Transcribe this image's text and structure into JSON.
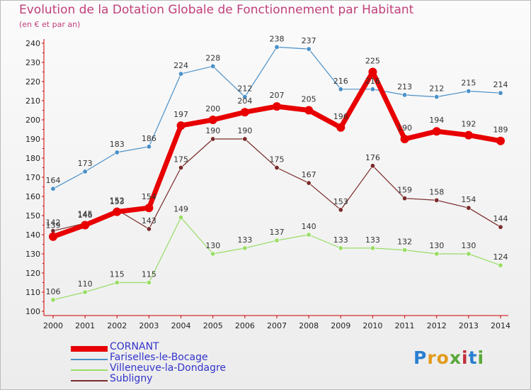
{
  "title": "Evolution de la Dotation Globale de Fonctionnement par Habitant",
  "subtitle": "(en € et par an)",
  "logo": {
    "text": "Proxiti",
    "letters": [
      "P",
      "r",
      "o",
      "x",
      "i",
      "t",
      "i"
    ],
    "colors": [
      "#2a7fd0",
      "#e39a1c",
      "#e39a1c",
      "#59a83a",
      "#c0303c",
      "#2a7fd0",
      "#59a83a"
    ]
  },
  "chart_data": {
    "type": "line",
    "title": "Evolution de la Dotation Globale de Fonctionnement par Habitant",
    "subtitle": "(en € et par an)",
    "x": [
      "2000",
      "2001",
      "2002",
      "2003",
      "2004",
      "2005",
      "2006",
      "2007",
      "2008",
      "2009",
      "2010",
      "2011",
      "2012",
      "2013",
      "2014"
    ],
    "ylim": [
      100,
      240
    ],
    "yticks": [
      "100",
      "110",
      "120",
      "130",
      "140",
      "150",
      "160",
      "170",
      "180",
      "190",
      "200",
      "210",
      "220",
      "230",
      "240"
    ],
    "grid": false,
    "legend_position": "bottom-left",
    "series": [
      {
        "name": "Fariselles-le-Bocage",
        "color": "#4a90c8",
        "width": 1.2,
        "values": [
          164,
          173,
          183,
          186,
          224,
          228,
          212,
          238,
          237,
          216,
          216,
          213,
          212,
          215,
          214
        ]
      },
      {
        "name": "Villeneuve-la-Dondagre",
        "color": "#99dd66",
        "width": 1.2,
        "values": [
          106,
          110,
          115,
          115,
          149,
          130,
          133,
          137,
          140,
          133,
          133,
          132,
          130,
          130,
          124
        ]
      },
      {
        "name": "Subligny",
        "color": "#7a2a2a",
        "width": 1.2,
        "values": [
          142,
          146,
          153,
          143,
          175,
          190,
          190,
          175,
          167,
          153,
          176,
          159,
          158,
          154,
          144
        ]
      },
      {
        "name": "CORNANT",
        "color": "#e80000",
        "width": 7,
        "values": [
          139,
          145,
          152,
          154,
          197,
          200,
          204,
          207,
          205,
          196,
          225,
          190,
          194,
          192,
          189
        ]
      }
    ]
  },
  "legend": [
    {
      "name": "CORNANT",
      "color": "#e80000",
      "thick": 8
    },
    {
      "name": "Fariselles-le-Bocage",
      "color": "#4a90c8",
      "thick": 2
    },
    {
      "name": "Villeneuve-la-Dondagre",
      "color": "#99dd66",
      "thick": 2
    },
    {
      "name": "Subligny",
      "color": "#7a2a2a",
      "thick": 2
    }
  ]
}
